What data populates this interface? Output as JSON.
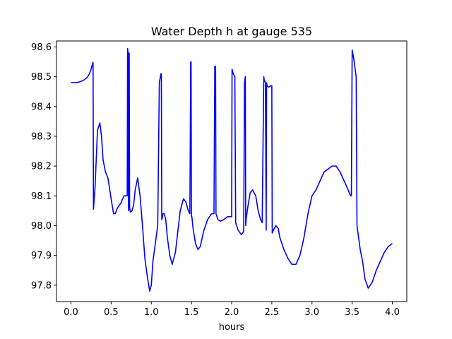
{
  "chart_data": {
    "type": "line",
    "title": "Water Depth h at gauge 535",
    "xlabel": "hours",
    "ylabel": "",
    "xlim": [
      -0.18,
      4.18
    ],
    "ylim": [
      97.745,
      98.62
    ],
    "grid": false,
    "legend": "none",
    "x_ticks": [
      0.0,
      0.5,
      1.0,
      1.5,
      2.0,
      2.5,
      3.0,
      3.5,
      4.0
    ],
    "x_tick_labels": [
      "0.0",
      "0.5",
      "1.0",
      "1.5",
      "2.0",
      "2.5",
      "3.0",
      "3.5",
      "4.0"
    ],
    "y_ticks": [
      97.8,
      97.9,
      98.0,
      98.1,
      98.2,
      98.3,
      98.4,
      98.5,
      98.6
    ],
    "y_tick_labels": [
      "97.8",
      "97.9",
      "98.0",
      "98.1",
      "98.2",
      "98.3",
      "98.4",
      "98.5",
      "98.6"
    ],
    "series": [
      {
        "color": "#0000ff",
        "x": [
          0.0,
          0.05,
          0.1,
          0.15,
          0.2,
          0.23,
          0.25,
          0.265,
          0.275,
          0.28,
          0.3,
          0.33,
          0.36,
          0.38,
          0.4,
          0.43,
          0.46,
          0.5,
          0.53,
          0.55,
          0.58,
          0.62,
          0.66,
          0.68,
          0.7,
          0.705,
          0.71,
          0.715,
          0.725,
          0.73,
          0.74,
          0.76,
          0.78,
          0.8,
          0.83,
          0.86,
          0.89,
          0.92,
          0.95,
          0.98,
          1.0,
          1.02,
          1.05,
          1.08,
          1.1,
          1.12,
          1.125,
          1.13,
          1.14,
          1.145,
          1.16,
          1.18,
          1.2,
          1.23,
          1.26,
          1.3,
          1.33,
          1.36,
          1.4,
          1.43,
          1.46,
          1.48,
          1.49,
          1.495,
          1.5,
          1.505,
          1.52,
          1.55,
          1.58,
          1.61,
          1.65,
          1.7,
          1.75,
          1.78,
          1.79,
          1.8,
          1.805,
          1.83,
          1.86,
          1.9,
          1.95,
          2.0,
          2.005,
          2.01,
          2.02,
          2.04,
          2.05,
          2.08,
          2.12,
          2.15,
          2.16,
          2.17,
          2.175,
          2.18,
          2.2,
          2.23,
          2.26,
          2.3,
          2.33,
          2.36,
          2.38,
          2.4,
          2.405,
          2.42,
          2.43,
          2.435,
          2.44,
          2.46,
          2.49,
          2.5,
          2.505,
          2.52,
          2.55,
          2.58,
          2.6,
          2.65,
          2.7,
          2.75,
          2.8,
          2.85,
          2.9,
          2.95,
          3.0,
          3.05,
          3.1,
          3.15,
          3.2,
          3.25,
          3.3,
          3.35,
          3.4,
          3.45,
          3.48,
          3.49,
          3.5,
          3.52,
          3.55,
          3.56,
          3.58,
          3.6,
          3.63,
          3.66,
          3.7,
          3.75,
          3.8,
          3.85,
          3.9,
          3.95,
          4.0
        ],
        "y": [
          98.48,
          98.48,
          98.482,
          98.487,
          98.497,
          98.51,
          98.525,
          98.54,
          98.548,
          98.055,
          98.13,
          98.32,
          98.345,
          98.3,
          98.22,
          98.18,
          98.16,
          98.09,
          98.04,
          98.04,
          98.06,
          98.075,
          98.1,
          98.1,
          98.1,
          98.595,
          98.58,
          98.05,
          98.58,
          98.06,
          98.045,
          98.05,
          98.07,
          98.12,
          98.16,
          98.1,
          98.0,
          97.89,
          97.83,
          97.78,
          97.8,
          97.88,
          97.94,
          98.0,
          98.48,
          98.51,
          98.51,
          98.02,
          98.03,
          98.04,
          98.04,
          98.02,
          97.96,
          97.9,
          97.87,
          97.91,
          97.98,
          98.05,
          98.09,
          98.08,
          98.05,
          98.04,
          98.55,
          98.55,
          98.03,
          98.03,
          97.99,
          97.94,
          97.92,
          97.93,
          97.98,
          98.02,
          98.04,
          98.04,
          98.535,
          98.535,
          98.04,
          98.02,
          98.015,
          98.02,
          98.03,
          98.03,
          98.525,
          98.52,
          98.51,
          98.5,
          98.01,
          97.985,
          97.97,
          97.98,
          98.48,
          98.5,
          98.0,
          98.02,
          98.06,
          98.11,
          98.12,
          98.1,
          98.05,
          98.02,
          98.01,
          98.5,
          98.49,
          98.48,
          97.985,
          98.48,
          98.47,
          98.465,
          98.47,
          98.47,
          97.975,
          97.985,
          98.0,
          97.99,
          97.96,
          97.92,
          97.89,
          97.87,
          97.87,
          97.9,
          97.96,
          98.04,
          98.1,
          98.12,
          98.15,
          98.18,
          98.19,
          98.2,
          98.2,
          98.18,
          98.15,
          98.12,
          98.1,
          98.1,
          98.59,
          98.56,
          98.5,
          98.0,
          97.96,
          97.92,
          97.88,
          97.82,
          97.79,
          97.81,
          97.85,
          97.88,
          97.91,
          97.93,
          97.94
        ]
      }
    ]
  }
}
